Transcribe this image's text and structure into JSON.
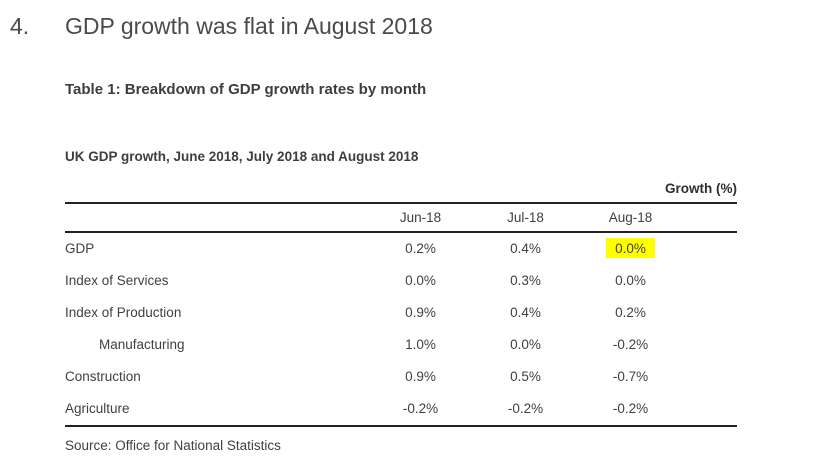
{
  "heading": {
    "number": "4.",
    "title": "GDP growth was flat in August 2018"
  },
  "table_section": {
    "title": "Table 1: Breakdown of GDP growth rates by month",
    "subtitle": "UK GDP growth, June 2018, July 2018 and August 2018",
    "unit_label": "Growth (%)",
    "source": "Source: Office for National Statistics"
  },
  "chart_data": {
    "type": "table",
    "columns": [
      "",
      "Jun-18",
      "Jul-18",
      "Aug-18"
    ],
    "rows": [
      {
        "label": "GDP",
        "indent": false,
        "values": [
          "0.2%",
          "0.4%",
          "0.0%"
        ],
        "highlight_col": 2
      },
      {
        "label": "Index of Services",
        "indent": false,
        "values": [
          "0.0%",
          "0.3%",
          "0.0%"
        ],
        "highlight_col": null
      },
      {
        "label": "Index of Production",
        "indent": false,
        "values": [
          "0.9%",
          "0.4%",
          "0.2%"
        ],
        "highlight_col": null
      },
      {
        "label": "Manufacturing",
        "indent": true,
        "values": [
          "1.0%",
          "0.0%",
          "-0.2%"
        ],
        "highlight_col": null
      },
      {
        "label": "Construction",
        "indent": false,
        "values": [
          "0.9%",
          "0.5%",
          "-0.7%"
        ],
        "highlight_col": null
      },
      {
        "label": "Agriculture",
        "indent": false,
        "values": [
          "-0.2%",
          "-0.2%",
          "-0.2%"
        ],
        "highlight_col": null
      }
    ],
    "highlight_color": "#ffff00"
  }
}
